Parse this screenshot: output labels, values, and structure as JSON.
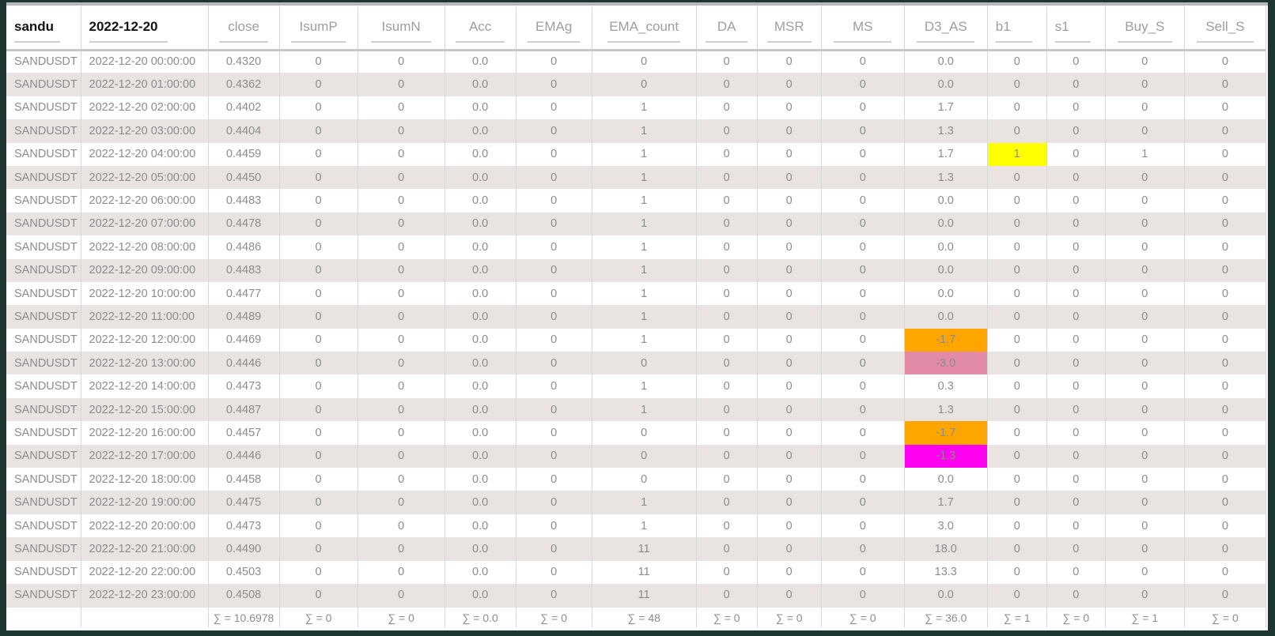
{
  "table": {
    "columns": [
      {
        "key": "sandu",
        "label": "sandu"
      },
      {
        "key": "date",
        "label": "2022-12-20"
      },
      {
        "key": "close",
        "label": "close"
      },
      {
        "key": "IsumP",
        "label": "IsumP"
      },
      {
        "key": "IsumN",
        "label": "IsumN"
      },
      {
        "key": "Acc",
        "label": "Acc"
      },
      {
        "key": "EMAg",
        "label": "EMAg"
      },
      {
        "key": "EMA_count",
        "label": "EMA_count"
      },
      {
        "key": "DA",
        "label": "DA"
      },
      {
        "key": "MSR",
        "label": "MSR"
      },
      {
        "key": "MS",
        "label": "MS"
      },
      {
        "key": "D3_AS",
        "label": "D3_AS"
      },
      {
        "key": "b1",
        "label": "b1"
      },
      {
        "key": "s1",
        "label": "s1"
      },
      {
        "key": "Buy_S",
        "label": "Buy_S"
      },
      {
        "key": "Sell_S",
        "label": "Sell_S"
      }
    ],
    "rows": [
      [
        "SANDUSDT",
        "2022-12-20 00:00:00",
        "0.4320",
        "0",
        "0",
        "0.0",
        "0",
        "0",
        "0",
        "0",
        "0",
        "0.0",
        "0",
        "0",
        "0",
        "0"
      ],
      [
        "SANDUSDT",
        "2022-12-20 01:00:00",
        "0.4362",
        "0",
        "0",
        "0.0",
        "0",
        "0",
        "0",
        "0",
        "0",
        "0.0",
        "0",
        "0",
        "0",
        "0"
      ],
      [
        "SANDUSDT",
        "2022-12-20 02:00:00",
        "0.4402",
        "0",
        "0",
        "0.0",
        "0",
        "1",
        "0",
        "0",
        "0",
        "1.7",
        "0",
        "0",
        "0",
        "0"
      ],
      [
        "SANDUSDT",
        "2022-12-20 03:00:00",
        "0.4404",
        "0",
        "0",
        "0.0",
        "0",
        "1",
        "0",
        "0",
        "0",
        "1.3",
        "0",
        "0",
        "0",
        "0"
      ],
      [
        "SANDUSDT",
        "2022-12-20 04:00:00",
        "0.4459",
        "0",
        "0",
        "0.0",
        "0",
        "1",
        "0",
        "0",
        "0",
        "1.7",
        "1",
        "0",
        "1",
        "0"
      ],
      [
        "SANDUSDT",
        "2022-12-20 05:00:00",
        "0.4450",
        "0",
        "0",
        "0.0",
        "0",
        "1",
        "0",
        "0",
        "0",
        "1.3",
        "0",
        "0",
        "0",
        "0"
      ],
      [
        "SANDUSDT",
        "2022-12-20 06:00:00",
        "0.4483",
        "0",
        "0",
        "0.0",
        "0",
        "1",
        "0",
        "0",
        "0",
        "0.0",
        "0",
        "0",
        "0",
        "0"
      ],
      [
        "SANDUSDT",
        "2022-12-20 07:00:00",
        "0.4478",
        "0",
        "0",
        "0.0",
        "0",
        "1",
        "0",
        "0",
        "0",
        "0.0",
        "0",
        "0",
        "0",
        "0"
      ],
      [
        "SANDUSDT",
        "2022-12-20 08:00:00",
        "0.4486",
        "0",
        "0",
        "0.0",
        "0",
        "1",
        "0",
        "0",
        "0",
        "0.0",
        "0",
        "0",
        "0",
        "0"
      ],
      [
        "SANDUSDT",
        "2022-12-20 09:00:00",
        "0.4483",
        "0",
        "0",
        "0.0",
        "0",
        "1",
        "0",
        "0",
        "0",
        "0.0",
        "0",
        "0",
        "0",
        "0"
      ],
      [
        "SANDUSDT",
        "2022-12-20 10:00:00",
        "0.4477",
        "0",
        "0",
        "0.0",
        "0",
        "1",
        "0",
        "0",
        "0",
        "0.0",
        "0",
        "0",
        "0",
        "0"
      ],
      [
        "SANDUSDT",
        "2022-12-20 11:00:00",
        "0.4489",
        "0",
        "0",
        "0.0",
        "0",
        "1",
        "0",
        "0",
        "0",
        "0.0",
        "0",
        "0",
        "0",
        "0"
      ],
      [
        "SANDUSDT",
        "2022-12-20 12:00:00",
        "0.4469",
        "0",
        "0",
        "0.0",
        "0",
        "1",
        "0",
        "0",
        "0",
        "-1.7",
        "0",
        "0",
        "0",
        "0"
      ],
      [
        "SANDUSDT",
        "2022-12-20 13:00:00",
        "0.4446",
        "0",
        "0",
        "0.0",
        "0",
        "0",
        "0",
        "0",
        "0",
        "-3.0",
        "0",
        "0",
        "0",
        "0"
      ],
      [
        "SANDUSDT",
        "2022-12-20 14:00:00",
        "0.4473",
        "0",
        "0",
        "0.0",
        "0",
        "1",
        "0",
        "0",
        "0",
        "0.3",
        "0",
        "0",
        "0",
        "0"
      ],
      [
        "SANDUSDT",
        "2022-12-20 15:00:00",
        "0.4487",
        "0",
        "0",
        "0.0",
        "0",
        "1",
        "0",
        "0",
        "0",
        "1.3",
        "0",
        "0",
        "0",
        "0"
      ],
      [
        "SANDUSDT",
        "2022-12-20 16:00:00",
        "0.4457",
        "0",
        "0",
        "0.0",
        "0",
        "0",
        "0",
        "0",
        "0",
        "-1.7",
        "0",
        "0",
        "0",
        "0"
      ],
      [
        "SANDUSDT",
        "2022-12-20 17:00:00",
        "0.4446",
        "0",
        "0",
        "0.0",
        "0",
        "0",
        "0",
        "0",
        "0",
        "-1.3",
        "0",
        "0",
        "0",
        "0"
      ],
      [
        "SANDUSDT",
        "2022-12-20 18:00:00",
        "0.4458",
        "0",
        "0",
        "0.0",
        "0",
        "0",
        "0",
        "0",
        "0",
        "0.0",
        "0",
        "0",
        "0",
        "0"
      ],
      [
        "SANDUSDT",
        "2022-12-20 19:00:00",
        "0.4475",
        "0",
        "0",
        "0.0",
        "0",
        "1",
        "0",
        "0",
        "0",
        "1.7",
        "0",
        "0",
        "0",
        "0"
      ],
      [
        "SANDUSDT",
        "2022-12-20 20:00:00",
        "0.4473",
        "0",
        "0",
        "0.0",
        "0",
        "1",
        "0",
        "0",
        "0",
        "3.0",
        "0",
        "0",
        "0",
        "0"
      ],
      [
        "SANDUSDT",
        "2022-12-20 21:00:00",
        "0.4490",
        "0",
        "0",
        "0.0",
        "0",
        "11",
        "0",
        "0",
        "0",
        "18.0",
        "0",
        "0",
        "0",
        "0"
      ],
      [
        "SANDUSDT",
        "2022-12-20 22:00:00",
        "0.4503",
        "0",
        "0",
        "0.0",
        "0",
        "11",
        "0",
        "0",
        "0",
        "13.3",
        "0",
        "0",
        "0",
        "0"
      ],
      [
        "SANDUSDT",
        "2022-12-20 23:00:00",
        "0.4508",
        "0",
        "0",
        "0.0",
        "0",
        "11",
        "0",
        "0",
        "0",
        "0.0",
        "0",
        "0",
        "0",
        "0"
      ]
    ],
    "footer": [
      "",
      "",
      "∑ = 10.6978",
      "∑ = 0",
      "∑ = 0",
      "∑ = 0.0",
      "∑ = 0",
      "∑ = 48",
      "∑ = 0",
      "∑ = 0",
      "∑ = 0",
      "∑ = 36.0",
      "∑ = 1",
      "∑ = 0",
      "∑ = 1",
      "∑ = 0"
    ],
    "highlights": [
      {
        "row": 4,
        "col": "b1",
        "color": "#ffff00"
      },
      {
        "row": 12,
        "col": "D3_AS",
        "color": "#ffa500"
      },
      {
        "row": 13,
        "col": "D3_AS",
        "color": "#e18ba6"
      },
      {
        "row": 16,
        "col": "D3_AS",
        "color": "#ffa500"
      },
      {
        "row": 17,
        "col": "D3_AS",
        "color": "#ff00f0"
      }
    ]
  },
  "colors": {
    "frame_border": "#1e3632",
    "row_stripe": "#e9e4e2",
    "highlight_yellow": "#ffff00",
    "highlight_orange": "#ffa500",
    "highlight_pink": "#e18ba6",
    "highlight_magenta": "#ff00f0"
  }
}
